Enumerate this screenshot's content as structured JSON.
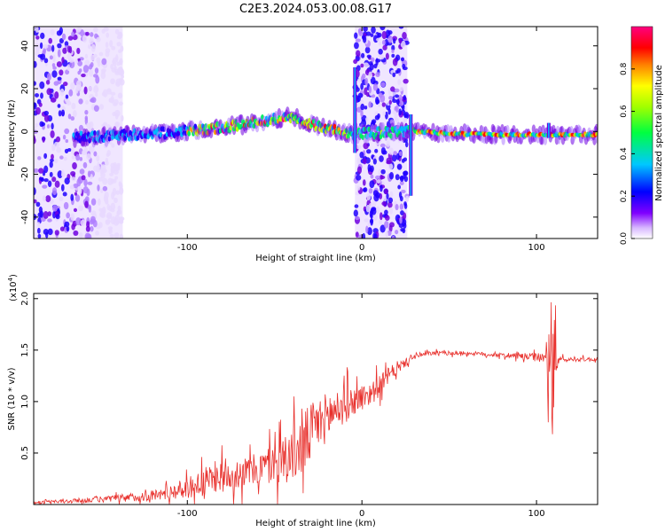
{
  "chart_data": [
    {
      "type": "heatmap",
      "title": "C2E3.2024.053.00.08.G17",
      "xlabel": "Height of straight line (km)",
      "ylabel": "Frequency (Hz)",
      "xlim": [
        -188,
        135
      ],
      "ylim": [
        -50,
        49
      ],
      "x_ticks": [
        -100,
        0,
        100
      ],
      "y_ticks": [
        -40,
        -20,
        0,
        20,
        40
      ],
      "colorbar": {
        "label": "Normalized spectral amplitude",
        "ticks": [
          "0.0",
          "0.2",
          "0.4",
          "0.6",
          "0.8"
        ],
        "range": [
          0,
          1
        ],
        "colors": [
          "#ffffff",
          "#c8a0ff",
          "#8000ff",
          "#0000ff",
          "#00d0ff",
          "#00ff00",
          "#ffff00",
          "#ff8000",
          "#ff0000",
          "#ff0080"
        ]
      },
      "ridge": {
        "x": [
          -165,
          -150,
          -130,
          -110,
          -90,
          -70,
          -55,
          -45,
          -38,
          -30,
          -20,
          -12,
          -6,
          30,
          50,
          80,
          105,
          110,
          135
        ],
        "frequency": [
          -3,
          -2.5,
          -1.5,
          -0.5,
          1,
          3,
          5,
          6.5,
          7,
          3.5,
          1,
          0,
          -1,
          0,
          -1,
          -1.5,
          -1.5,
          -1.5,
          -1.5
        ]
      },
      "spikes": [
        {
          "x": -4,
          "from": -10,
          "to": 30
        },
        {
          "x": 28,
          "from": -30,
          "to": 8
        },
        {
          "x": 107,
          "from": -3,
          "to": 4
        }
      ],
      "noise_regions": [
        {
          "x_from": -188,
          "x_to": -137,
          "level": 0.35
        },
        {
          "x_from": -4,
          "x_to": 26,
          "level": 0.45
        }
      ]
    },
    {
      "type": "line",
      "title": "",
      "xlabel": "Height of straight line (km)",
      "ylabel": "SNR (10 * v/v)",
      "y_scale_label": "(x10",
      "y_scale_exp": "4",
      "y_scale_suffix": ")",
      "xlim": [
        -188,
        135
      ],
      "ylim": [
        0,
        2.05
      ],
      "x_ticks": [
        -100,
        0,
        100
      ],
      "y_ticks": [
        0.5,
        1.0,
        1.5,
        2.0
      ],
      "y_tick_labels": [
        "0.5",
        "1.0",
        "1.5",
        "2.0"
      ],
      "color": "#e8302c",
      "series": [
        {
          "x": [
            -188,
            -170,
            -150,
            -130,
            -115,
            -100,
            -90,
            -80,
            -70,
            -60,
            -50,
            -40,
            -35,
            -30,
            -25,
            -20,
            -15,
            -10,
            -5,
            0,
            5,
            10,
            15,
            20,
            25,
            30,
            40,
            50,
            60,
            70,
            80,
            90,
            100,
            105,
            108,
            110,
            112,
            120,
            135
          ],
          "y": [
            0.02,
            0.03,
            0.05,
            0.07,
            0.1,
            0.16,
            0.22,
            0.28,
            0.3,
            0.34,
            0.4,
            0.48,
            0.55,
            0.68,
            0.78,
            0.85,
            0.92,
            0.96,
            1.0,
            1.05,
            1.08,
            1.15,
            1.25,
            1.32,
            1.38,
            1.44,
            1.47,
            1.47,
            1.47,
            1.46,
            1.45,
            1.44,
            1.43,
            1.42,
            1.3,
            1.42,
            1.4,
            1.41,
            1.41
          ],
          "noise_amplitude": [
            0.01,
            0.02,
            0.03,
            0.04,
            0.06,
            0.1,
            0.14,
            0.14,
            0.14,
            0.16,
            0.2,
            0.26,
            0.3,
            0.3,
            0.26,
            0.24,
            0.22,
            0.18,
            0.14,
            0.12,
            0.12,
            0.1,
            0.08,
            0.06,
            0.04,
            0.03,
            0.02,
            0.02,
            0.02,
            0.02,
            0.02,
            0.03,
            0.04,
            0.05,
            0.6,
            0.5,
            0.04,
            0.02,
            0.02
          ]
        }
      ]
    }
  ]
}
